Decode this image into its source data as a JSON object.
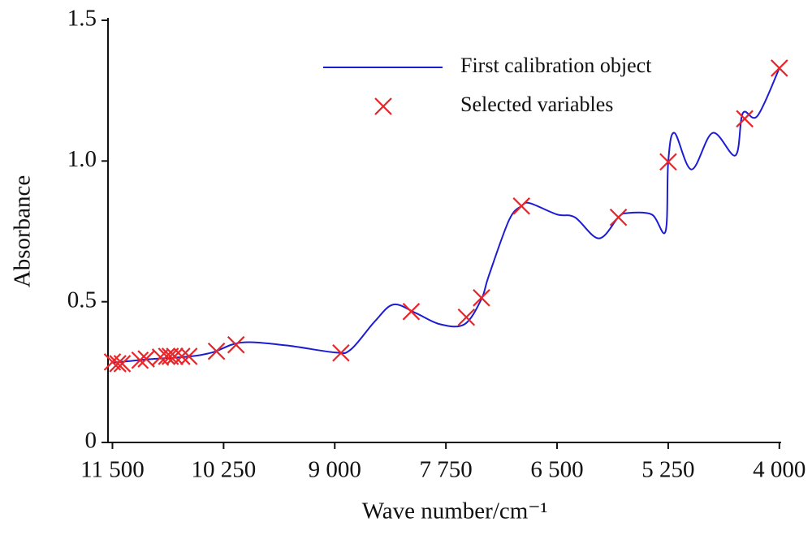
{
  "chart_data": {
    "type": "line",
    "x_label": "Wave number/cm⁻¹",
    "y_label": "Absorbance",
    "xlim": [
      11550,
      3980
    ],
    "ylim": [
      0,
      1.5
    ],
    "xticks": [
      {
        "value": 11500,
        "label": "11 500"
      },
      {
        "value": 10250,
        "label": "10 250"
      },
      {
        "value": 9000,
        "label": "9 000"
      },
      {
        "value": 7750,
        "label": "7 750"
      },
      {
        "value": 6500,
        "label": "6 500"
      },
      {
        "value": 5250,
        "label": "5 250"
      },
      {
        "value": 4000,
        "label": "4 000"
      }
    ],
    "yticks": [
      0,
      0.5,
      {
        "value": 1,
        "label": "1.0"
      },
      1.5
    ],
    "legend": "upper right",
    "series": [
      {
        "name": "First calibration object",
        "type": "line",
        "color": "#1c1cd4",
        "x": [
          11500,
          11110,
          10650,
          10375,
          10050,
          9550,
          9000,
          8820,
          8550,
          8340,
          8090,
          7815,
          7540,
          7350,
          7270,
          7040,
          6900,
          6805,
          6500,
          6300,
          6030,
          5810,
          5710,
          5435,
          5280,
          5250,
          5180,
          4987,
          4750,
          4494,
          4411,
          4247,
          4000
        ],
        "values": [
          0.283,
          0.295,
          0.305,
          0.32,
          0.355,
          0.345,
          0.32,
          0.33,
          0.43,
          0.49,
          0.46,
          0.42,
          0.42,
          0.51,
          0.59,
          0.79,
          0.84,
          0.85,
          0.81,
          0.8,
          0.725,
          0.8,
          0.815,
          0.81,
          0.75,
          0.997,
          1.1,
          0.97,
          1.1,
          1.02,
          1.17,
          1.16,
          1.33
        ]
      },
      {
        "name": "Selected variables",
        "type": "scatter",
        "color": "#e8262a",
        "x": [
          11500,
          11440,
          11390,
          11190,
          11120,
          10960,
          10890,
          10850,
          10800,
          10720,
          10640,
          10330,
          10110,
          8930,
          8140,
          7520,
          7350,
          6900,
          5810,
          5250,
          4390,
          4000
        ],
        "values": [
          0.286,
          0.28,
          0.28,
          0.292,
          0.297,
          0.303,
          0.306,
          0.306,
          0.306,
          0.306,
          0.306,
          0.324,
          0.347,
          0.318,
          0.465,
          0.445,
          0.514,
          0.84,
          0.8,
          0.997,
          1.15,
          1.33
        ]
      }
    ]
  }
}
